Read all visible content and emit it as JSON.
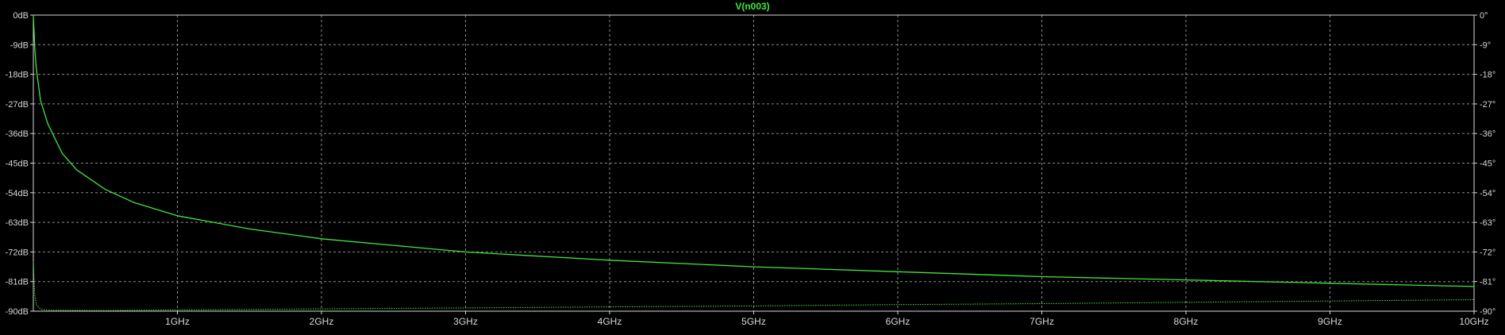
{
  "chart_data": {
    "type": "line",
    "title": "V(n003)",
    "x_unit": "Hz",
    "xlim": [
      0,
      10000000000
    ],
    "x_ticks": [
      1000000000,
      2000000000,
      3000000000,
      4000000000,
      5000000000,
      6000000000,
      7000000000,
      8000000000,
      9000000000,
      10000000000
    ],
    "x_tick_labels": [
      "1GHz",
      "2GHz",
      "3GHz",
      "4GHz",
      "5GHz",
      "6GHz",
      "7GHz",
      "8GHz",
      "9GHz",
      "10GHz"
    ],
    "ylim_left": [
      -90,
      0
    ],
    "y_left_ticks": [
      0,
      -9,
      -18,
      -27,
      -36,
      -45,
      -54,
      -63,
      -72,
      -81,
      -90
    ],
    "y_left_tick_labels": [
      "0dB",
      "-9dB",
      "-18dB",
      "-27dB",
      "-36dB",
      "-45dB",
      "-54dB",
      "-63dB",
      "-72dB",
      "-81dB",
      "-90dB"
    ],
    "ylim_right": [
      -90,
      0
    ],
    "y_right_ticks": [
      0,
      -9,
      -18,
      -27,
      -36,
      -45,
      -54,
      -63,
      -72,
      -81,
      -90
    ],
    "y_right_tick_labels": [
      "0°",
      "-9°",
      "-18°",
      "-27°",
      "-36°",
      "-45°",
      "-54°",
      "-63°",
      "-72°",
      "-81°",
      "-90°"
    ],
    "grid": true,
    "series": [
      {
        "name": "V(n003)",
        "axis": "left",
        "style": "solid",
        "x": [
          0,
          10000000,
          20000000,
          50000000,
          100000000,
          200000000,
          300000000,
          500000000,
          700000000,
          1000000000,
          1500000000,
          2000000000,
          2500000000,
          3000000000,
          4000000000,
          5000000000,
          6000000000,
          7000000000,
          8000000000,
          9000000000,
          10000000000
        ],
        "values": [
          0,
          -10,
          -16,
          -26,
          -33,
          -42,
          -47,
          -53,
          -57,
          -61,
          -65,
          -68,
          -70,
          -72,
          -74.5,
          -76.5,
          -78,
          -79.5,
          -80.5,
          -81.5,
          -82.5
        ]
      },
      {
        "name": "V(n003)",
        "axis": "right",
        "style": "dotted",
        "x": [
          0,
          10000000,
          20000000,
          50000000,
          100000000,
          500000000,
          1000000000,
          2000000000,
          3000000000,
          4000000000,
          5000000000,
          6000000000,
          7000000000,
          8000000000,
          9000000000,
          10000000000
        ],
        "values": [
          -75,
          -85,
          -88,
          -89.4,
          -89.7,
          -89.8,
          -89.6,
          -89.3,
          -89.0,
          -88.7,
          -88.4,
          -88.0,
          -87.7,
          -87.3,
          -86.9,
          -86.5
        ]
      }
    ]
  },
  "colors": {
    "background": "#000000",
    "grid": "#8c8c8c",
    "axis_text": "#d8d8d8",
    "trace": "#3fe63f",
    "title": "#3fe63f"
  }
}
